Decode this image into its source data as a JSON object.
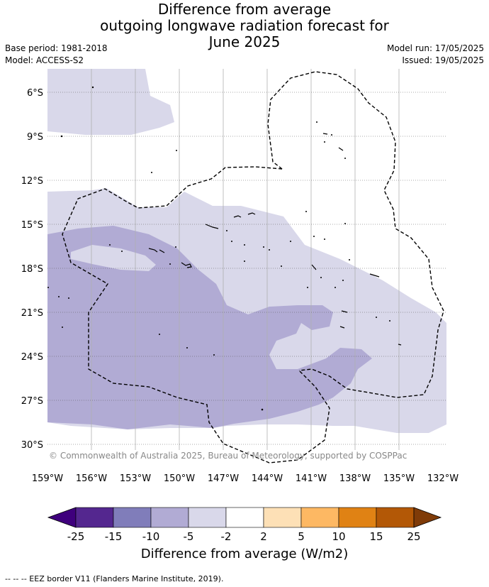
{
  "title_lines": [
    "Difference from average",
    "outgoing longwave radiation forecast for",
    "June 2025"
  ],
  "base_period": "Base period: 1981-2018",
  "model": "Model: ACCESS-S2",
  "model_run": "Model run: 17/05/2025",
  "issued": "Issued: 19/05/2025",
  "map": {
    "x_ticks": [
      "159°W",
      "156°W",
      "153°W",
      "150°W",
      "147°W",
      "144°W",
      "141°W",
      "138°W",
      "135°W",
      "132°W"
    ],
    "y_ticks": [
      "6°S",
      "9°S",
      "12°S",
      "15°S",
      "18°S",
      "21°S",
      "24°S",
      "27°S",
      "30°S"
    ],
    "copyright": "© Commonwealth of Australia 2025, Bureau of Meteorology, supported by COSPPac"
  },
  "colorbar": {
    "title": "Difference from average (W/m2)",
    "ticks": [
      "-25",
      "-15",
      "-10",
      "-5",
      "-2",
      "2",
      "5",
      "10",
      "15",
      "25"
    ],
    "colors": [
      "#3f007d",
      "#54278f",
      "#807dba",
      "#b1abd4",
      "#d9d8ea",
      "#ffffff",
      "#fde0b6",
      "#fdb863",
      "#e08214",
      "#b35806",
      "#7f3b08"
    ]
  },
  "footer": "--  --  -- EEZ border V11 (Flanders Marine Institute, 2019)."
}
